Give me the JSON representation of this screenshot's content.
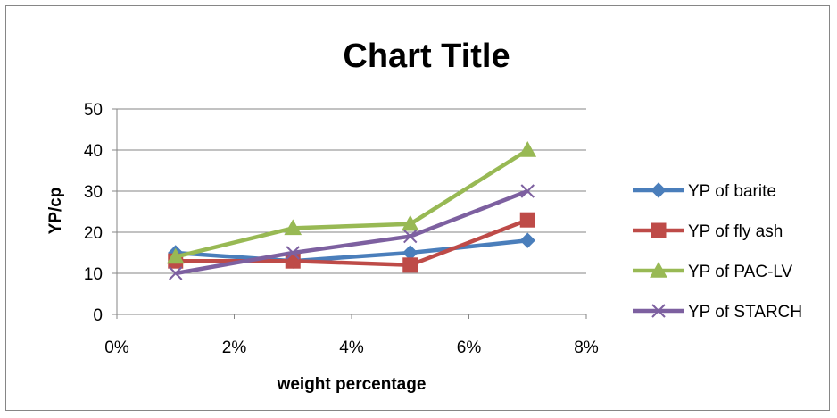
{
  "chart_data": {
    "type": "line",
    "title": "Chart Title",
    "xlabel": "weight percentage",
    "ylabel": "YP/cp",
    "xlim": [
      0,
      0.08
    ],
    "ylim": [
      0,
      50
    ],
    "x_ticks": [
      {
        "value": 0,
        "label": "0%"
      },
      {
        "value": 0.02,
        "label": "2%"
      },
      {
        "value": 0.04,
        "label": "4%"
      },
      {
        "value": 0.06,
        "label": "6%"
      },
      {
        "value": 0.08,
        "label": "8%"
      }
    ],
    "y_ticks": [
      {
        "value": 0,
        "label": "0"
      },
      {
        "value": 10,
        "label": "10"
      },
      {
        "value": 20,
        "label": "20"
      },
      {
        "value": 30,
        "label": "30"
      },
      {
        "value": 40,
        "label": "40"
      },
      {
        "value": 50,
        "label": "50"
      }
    ],
    "grid": "horizontal",
    "legend_position": "right",
    "x": [
      0.01,
      0.03,
      0.05,
      0.07
    ],
    "series": [
      {
        "name": "YP of  barite",
        "values": [
          15,
          13,
          15,
          18
        ],
        "color": "#4A7EBB",
        "marker": "diamond"
      },
      {
        "name": "YP of fly ash",
        "values": [
          13,
          13,
          12,
          23
        ],
        "color": "#BE4B48",
        "marker": "square"
      },
      {
        "name": "YP of  PAC-LV",
        "values": [
          14,
          21,
          22,
          40
        ],
        "color": "#98B954",
        "marker": "triangle"
      },
      {
        "name": "YP of  STARCH",
        "values": [
          10,
          15,
          19,
          30
        ],
        "color": "#7D60A0",
        "marker": "x"
      }
    ]
  }
}
